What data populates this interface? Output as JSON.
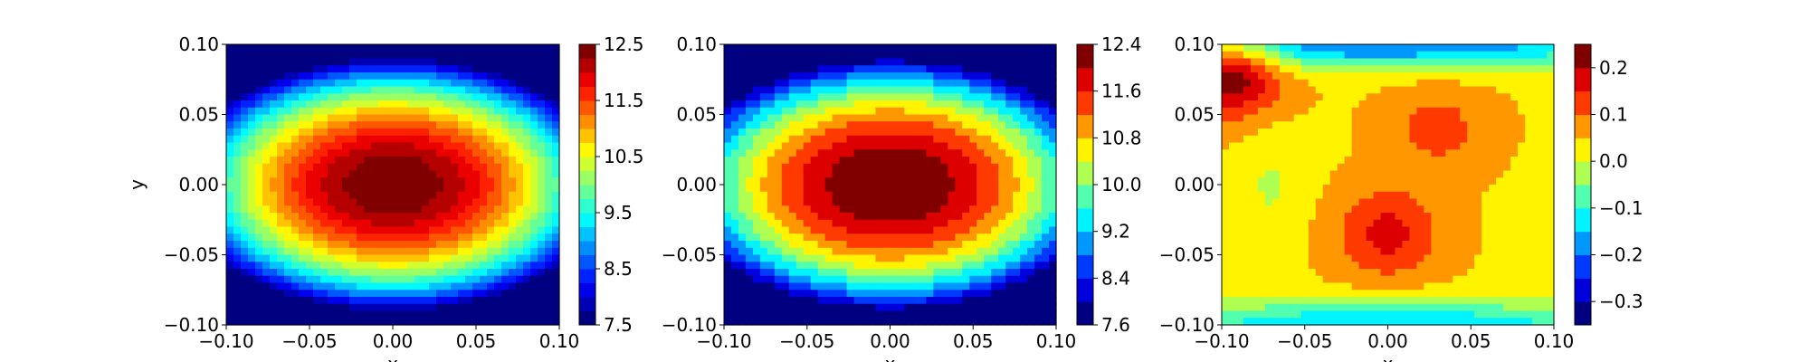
{
  "chart_data": [
    {
      "type": "contour",
      "panel": "left",
      "xlabel": "x",
      "ylabel": "y",
      "xlim": [
        -0.1,
        0.1
      ],
      "ylim": [
        -0.1,
        0.1
      ],
      "xticks": [
        "−0.10",
        "−0.05",
        "0.00",
        "0.05",
        "0.10"
      ],
      "yticks": [
        "−0.10",
        "−0.05",
        "0.00",
        "0.05",
        "0.10"
      ],
      "field": {
        "shape": "dome",
        "center": [
          0.0,
          0.0
        ],
        "min": 7.5,
        "max": 12.5
      },
      "colorbar": {
        "range": [
          7.5,
          12.5
        ],
        "ticks": [
          "7.5",
          "8.5",
          "9.5",
          "10.5",
          "11.5",
          "12.5"
        ],
        "tick_values": [
          7.5,
          8.5,
          9.5,
          10.5,
          11.5,
          12.5
        ],
        "levels": [
          7.5,
          7.75,
          8.0,
          8.25,
          8.5,
          8.75,
          9.0,
          9.25,
          9.5,
          9.75,
          10.0,
          10.25,
          10.5,
          10.75,
          11.0,
          11.25,
          11.5,
          11.75,
          12.0,
          12.25,
          12.5
        ]
      },
      "colormap": "jet"
    },
    {
      "type": "contour",
      "panel": "middle",
      "xlabel": "x",
      "ylabel": "",
      "xlim": [
        -0.1,
        0.1
      ],
      "ylim": [
        -0.1,
        0.1
      ],
      "xticks": [
        "−0.10",
        "−0.05",
        "0.00",
        "0.05",
        "0.10"
      ],
      "yticks": [
        "−0.10",
        "−0.05",
        "0.00",
        "0.05",
        "0.10"
      ],
      "field": {
        "shape": "dome",
        "center": [
          0.0,
          0.0
        ],
        "min": 7.6,
        "max": 12.4
      },
      "colorbar": {
        "range": [
          7.6,
          12.4
        ],
        "ticks": [
          "7.6",
          "8.4",
          "9.2",
          "10.0",
          "10.8",
          "11.6",
          "12.4"
        ],
        "tick_values": [
          7.6,
          8.4,
          9.2,
          10.0,
          10.8,
          11.6,
          12.4
        ],
        "levels": [
          7.6,
          8.0,
          8.4,
          8.8,
          9.2,
          9.6,
          10.0,
          10.4,
          10.8,
          11.2,
          11.6,
          12.0,
          12.4
        ]
      },
      "colormap": "jet"
    },
    {
      "type": "contour",
      "panel": "right",
      "xlabel": "x",
      "ylabel": "",
      "xlim": [
        -0.1,
        0.1
      ],
      "ylim": [
        -0.1,
        0.1
      ],
      "xticks": [
        "−0.10",
        "−0.05",
        "0.00",
        "0.05",
        "0.10"
      ],
      "yticks": [
        "−0.10",
        "−0.05",
        "0.00",
        "0.05",
        "0.10"
      ],
      "field": {
        "shape": "difference",
        "features": [
          {
            "kind": "peak",
            "center": [
              0.0,
              -0.035
            ],
            "value": 0.17
          },
          {
            "kind": "peak",
            "center": [
              0.03,
              0.04
            ],
            "value": 0.12
          },
          {
            "kind": "peak",
            "center": [
              -0.095,
              0.08
            ],
            "value": 0.25
          },
          {
            "kind": "trough",
            "center": [
              0.0,
              -0.1
            ],
            "value": -0.15
          },
          {
            "kind": "trough",
            "center": [
              0.0,
              0.1
            ],
            "value": -0.2
          }
        ]
      },
      "colorbar": {
        "range": [
          -0.35,
          0.25
        ],
        "ticks": [
          "−0.3",
          "−0.2",
          "−0.1",
          "0.0",
          "0.1",
          "0.2"
        ],
        "tick_values": [
          -0.3,
          -0.2,
          -0.1,
          0.0,
          0.1,
          0.2
        ],
        "levels": [
          -0.35,
          -0.3,
          -0.25,
          -0.2,
          -0.15,
          -0.1,
          -0.05,
          0.0,
          0.05,
          0.1,
          0.15,
          0.2,
          0.25
        ]
      },
      "colormap": "jet"
    }
  ]
}
